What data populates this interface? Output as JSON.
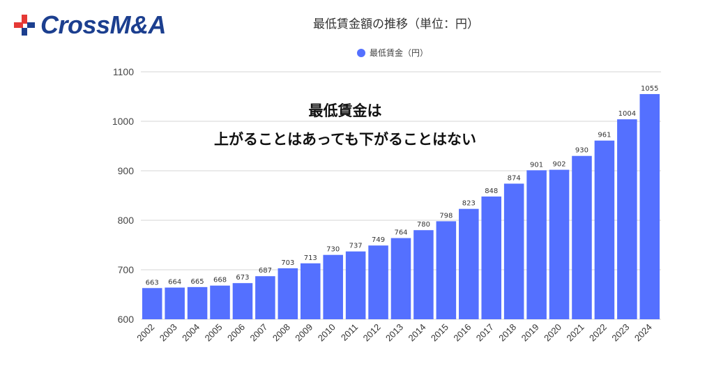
{
  "brand": {
    "logo_text": "CrossM&A",
    "logo_icon": "cross-plus-icon",
    "colors": {
      "red": "#e53935",
      "blue": "#1c3f8f"
    }
  },
  "chart_data": {
    "type": "bar",
    "title": "最低賃金額の推移（単位：円）",
    "legend": {
      "label": "最低賃金（円）",
      "placement": "top-center"
    },
    "bar_color": "#5470ff",
    "categories": [
      "2002",
      "2003",
      "2004",
      "2005",
      "2006",
      "2007",
      "2008",
      "2009",
      "2010",
      "2011",
      "2012",
      "2013",
      "2014",
      "2015",
      "2016",
      "2017",
      "2018",
      "2019",
      "2020",
      "2021",
      "2022",
      "2023",
      "2024"
    ],
    "values": [
      663,
      664,
      665,
      668,
      673,
      687,
      703,
      713,
      730,
      737,
      749,
      764,
      780,
      798,
      823,
      848,
      874,
      901,
      902,
      930,
      961,
      1004,
      1055
    ],
    "ylim": [
      600,
      1100
    ],
    "yticks": [
      600,
      700,
      800,
      900,
      1000,
      1100
    ],
    "grid": true,
    "xlabel": "",
    "ylabel": "",
    "annotation": {
      "line1": "最低賃金は",
      "line2": "上がることはあっても下がることはない"
    }
  }
}
